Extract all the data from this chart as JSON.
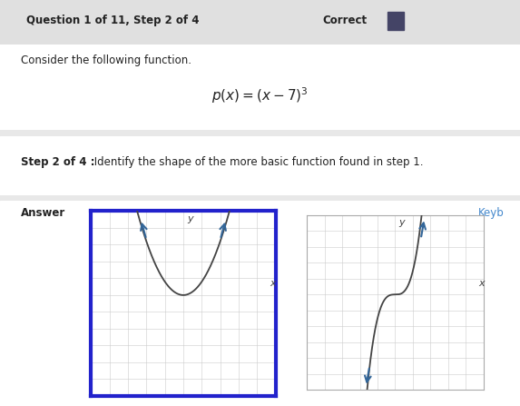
{
  "title_left": "Question 1 of 11, Step 2 of 4",
  "title_right": "Correct",
  "consider_text": "Consider the following function.",
  "step_bold": "Step 2 of 4 :",
  "step_desc": " Identify the shape of the more basic function found in step 1.",
  "answer_text": "Answer",
  "keyb_text": "Keyb",
  "bg_color": "#e8e8e8",
  "white_bg": "#ffffff",
  "panel_bg": "#f0f0f0",
  "graph1_border_color": "#2222cc",
  "grid_color": "#cccccc",
  "axis_color": "#444444",
  "curve_color": "#444444",
  "arrow_color": "#336699",
  "header_bg": "#e0e0e0",
  "graph_area_bg": "#e8e8e8",
  "section_line": "#bbbbbb"
}
